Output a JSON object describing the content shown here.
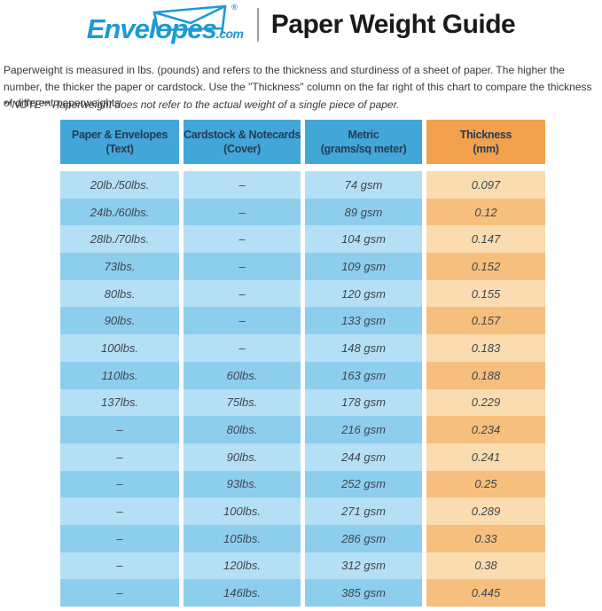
{
  "header": {
    "logo_brand": "Envelopes",
    "logo_tld": ".com",
    "registered_mark": "®",
    "title": "Paper Weight Guide"
  },
  "intro": {
    "paragraph": "Paperweight is measured in lbs. (pounds) and refers to the thickness and sturdiness of a sheet of paper. The higher the number, the thicker the paper or cardstock. Use the \"Thickness\" column on the far right of this chart to compare the thickness of different paperweights.",
    "note": "**NOTE** Paperweight does not refer to the actual weight of a single piece of paper."
  },
  "colors": {
    "logo_blue": "#1c9ad6",
    "header_blue": "#42a6d8",
    "header_orange": "#f2a14d",
    "row_blue_light": "#b5dff5",
    "row_blue_dark": "#8dceed",
    "row_orange_light": "#fadcb0",
    "row_orange_dark": "#f6bf7d"
  },
  "chart_data": {
    "type": "table",
    "title": "Paper Weight Guide",
    "columns": [
      {
        "line1": "Paper & Envelopes",
        "line2": "(Text)"
      },
      {
        "line1": "Cardstock & Notecards",
        "line2": "(Cover)"
      },
      {
        "line1": "Metric",
        "line2": "(grams/sq meter)"
      },
      {
        "line1": "Thickness",
        "line2": "(mm)"
      }
    ],
    "rows": [
      [
        "20lb./50lbs.",
        "–",
        "74 gsm",
        "0.097"
      ],
      [
        "24lb./60lbs.",
        "–",
        "89 gsm",
        "0.12"
      ],
      [
        "28lb./70lbs.",
        "–",
        "104 gsm",
        "0.147"
      ],
      [
        "73lbs.",
        "–",
        "109 gsm",
        "0.152"
      ],
      [
        "80lbs.",
        "–",
        "120 gsm",
        "0.155"
      ],
      [
        "90lbs.",
        "–",
        "133 gsm",
        "0.157"
      ],
      [
        "100lbs.",
        "–",
        "148 gsm",
        "0.183"
      ],
      [
        "110lbs.",
        "60lbs.",
        "163 gsm",
        "0.188"
      ],
      [
        "137lbs.",
        "75lbs.",
        "178 gsm",
        "0.229"
      ],
      [
        "–",
        "80lbs.",
        "216 gsm",
        "0.234"
      ],
      [
        "–",
        "90lbs.",
        "244 gsm",
        "0.241"
      ],
      [
        "–",
        "93lbs.",
        "252 gsm",
        "0.25"
      ],
      [
        "–",
        "100lbs.",
        "271 gsm",
        "0.289"
      ],
      [
        "–",
        "105lbs.",
        "286 gsm",
        "0.33"
      ],
      [
        "–",
        "120lbs.",
        "312 gsm",
        "0.38"
      ],
      [
        "–",
        "146lbs.",
        "385 gsm",
        "0.445"
      ]
    ]
  }
}
